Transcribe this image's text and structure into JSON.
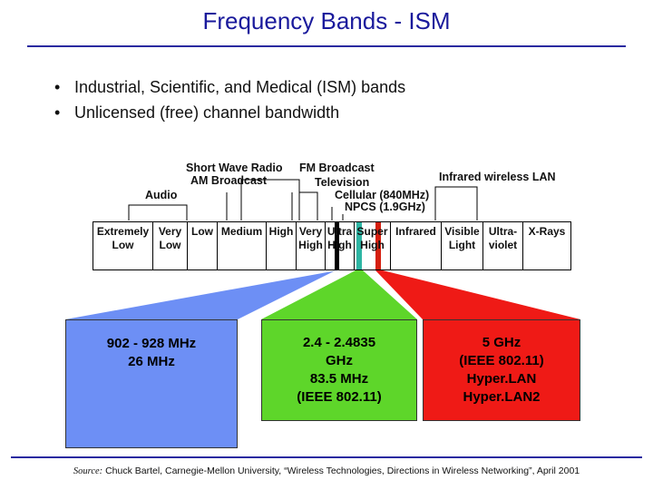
{
  "title": "Frequency Bands - ISM",
  "bullets": [
    "Industrial, Scientific, and Medical (ISM) bands",
    "Unlicensed (free) channel bandwidth"
  ],
  "top_labels": {
    "short_wave": "Short Wave Radio",
    "fm": "FM Broadcast",
    "am": "AM Broadcast",
    "tv": "Television",
    "infrared": "Infrared wireless LAN",
    "audio": "Audio",
    "cellular": "Cellular (840MHz)",
    "npcs": "NPCS (1.9GHz)"
  },
  "spectrum_cells": [
    {
      "l1": "Extremely",
      "l2": "Low"
    },
    {
      "l1": "Very",
      "l2": "Low"
    },
    {
      "l1": "Low",
      "l2": ""
    },
    {
      "l1": "Medium",
      "l2": ""
    },
    {
      "l1": "High",
      "l2": ""
    },
    {
      "l1": "Very",
      "l2": "High"
    },
    {
      "l1": "Ultra",
      "l2": "High"
    },
    {
      "l1": "Super",
      "l2": "High"
    },
    {
      "l1": "Infrared",
      "l2": ""
    },
    {
      "l1": "Visible",
      "l2": "Light"
    },
    {
      "l1": "Ultra-",
      "l2": "violet"
    },
    {
      "l1": "X-Rays",
      "l2": ""
    }
  ],
  "ism_boxes": [
    {
      "lines": [
        "902 - 928 MHz",
        "26 MHz"
      ],
      "color": "#6d8ff5"
    },
    {
      "lines": [
        "2.4 - 2.4835",
        "GHz",
        "83.5 MHz",
        "(IEEE 802.11)"
      ],
      "color": "#5ed62a"
    },
    {
      "lines": [
        "5 GHz",
        "(IEEE 802.11)",
        "Hyper.LAN",
        "Hyper.LAN2"
      ],
      "color": "#ef1a16"
    }
  ],
  "source": {
    "label": "Source:",
    "text": "Chuck Bartel, Carnegie-Mellon University, “Wireless Technologies, Directions in Wireless Networking”, April 2001"
  },
  "colors": {
    "title": "#1a1a9c",
    "band_900": "#6d8ff5",
    "band_2400": "#5ed62a",
    "band_5000": "#ef1a16",
    "marker_black": "#000000",
    "marker_teal": "#2db5a3",
    "marker_red": "#d51f0f"
  }
}
